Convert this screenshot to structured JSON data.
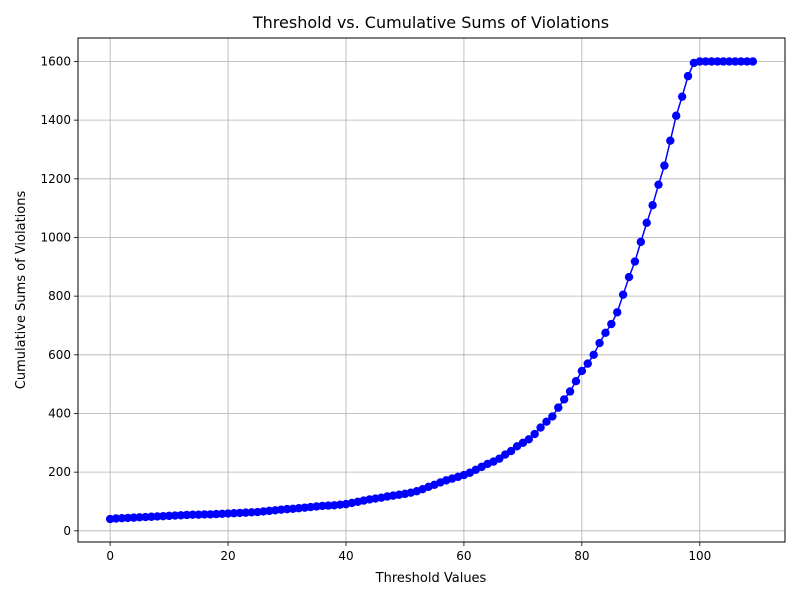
{
  "chart_data": {
    "type": "line",
    "title": "Threshold vs. Cumulative Sums of Violations",
    "xlabel": "Threshold Values",
    "ylabel": "Cumulative Sums of Violations",
    "xlim": [
      -5.45,
      114.45
    ],
    "ylim": [
      -38.1,
      1680
    ],
    "xticks": [
      0,
      20,
      40,
      60,
      80,
      100
    ],
    "yticks": [
      0,
      200,
      400,
      600,
      800,
      1000,
      1200,
      1400,
      1600
    ],
    "grid": true,
    "line_color": "#0000ff",
    "marker": "circle",
    "series": [
      {
        "x": [
          0,
          1,
          2,
          3,
          4,
          5,
          6,
          7,
          8,
          9,
          10,
          11,
          12,
          13,
          14,
          15,
          16,
          17,
          18,
          19,
          20,
          21,
          22,
          23,
          24,
          25,
          26,
          27,
          28,
          29,
          30,
          31,
          32,
          33,
          34,
          35,
          36,
          37,
          38,
          39,
          40,
          41,
          42,
          43,
          44,
          45,
          46,
          47,
          48,
          49,
          50,
          51,
          52,
          53,
          54,
          55,
          56,
          57,
          58,
          59,
          60,
          61,
          62,
          63,
          64,
          65,
          66,
          67,
          68,
          69,
          70,
          71,
          72,
          73,
          74,
          75,
          76,
          77,
          78,
          79,
          80,
          81,
          82,
          83,
          84,
          85,
          86,
          87,
          88,
          89,
          90,
          91,
          92,
          93,
          94,
          95,
          96,
          97,
          98,
          99,
          100,
          101,
          102,
          103,
          104,
          105,
          106,
          107,
          108,
          109
        ],
        "values": [
          40,
          42,
          43,
          44,
          45,
          46,
          47,
          48,
          49,
          50,
          51,
          52,
          53,
          54,
          55,
          55,
          56,
          56,
          57,
          58,
          59,
          60,
          61,
          62,
          63,
          64,
          66,
          68,
          70,
          72,
          74,
          75,
          77,
          79,
          81,
          83,
          85,
          86,
          87,
          89,
          91,
          95,
          99,
          103,
          107,
          110,
          113,
          117,
          120,
          123,
          126,
          130,
          135,
          142,
          150,
          157,
          165,
          172,
          178,
          184,
          190,
          198,
          208,
          218,
          228,
          236,
          246,
          260,
          272,
          288,
          300,
          312,
          330,
          352,
          372,
          390,
          420,
          448,
          475,
          510,
          545,
          570,
          600,
          640,
          675,
          705,
          745,
          805,
          865,
          918,
          985,
          1050,
          1110,
          1180,
          1245,
          1330,
          1415,
          1480,
          1550,
          1595,
          1600,
          1600,
          1600,
          1600,
          1600,
          1600,
          1600,
          1600,
          1600,
          1600
        ]
      }
    ]
  }
}
